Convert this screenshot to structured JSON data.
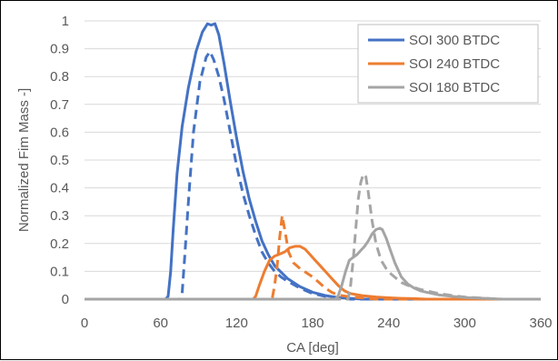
{
  "chart_data": {
    "type": "line",
    "title": "",
    "xlabel": "CA [deg]",
    "ylabel": "Normalized Fim Mass -]",
    "xlim": [
      0,
      360
    ],
    "ylim": [
      0,
      1
    ],
    "xticks": [
      0,
      60,
      120,
      180,
      240,
      300,
      360
    ],
    "yticks": [
      0,
      0.1,
      0.2,
      0.3,
      0.4,
      0.5,
      0.6,
      0.7,
      0.8,
      0.9,
      1
    ],
    "grid": "horizontal",
    "legend_position": "top-right",
    "series": [
      {
        "name": "SOI 300 BTDC",
        "color": "#4472C4",
        "style": "solid",
        "points": [
          [
            0,
            0
          ],
          [
            64,
            0
          ],
          [
            66,
            0.01
          ],
          [
            68,
            0.1
          ],
          [
            70,
            0.25
          ],
          [
            73,
            0.45
          ],
          [
            77,
            0.62
          ],
          [
            82,
            0.76
          ],
          [
            88,
            0.89
          ],
          [
            93,
            0.96
          ],
          [
            97,
            0.99
          ],
          [
            100,
            0.985
          ],
          [
            103,
            0.99
          ],
          [
            106,
            0.95
          ],
          [
            110,
            0.85
          ],
          [
            115,
            0.71
          ],
          [
            120,
            0.58
          ],
          [
            125,
            0.46
          ],
          [
            130,
            0.36
          ],
          [
            135,
            0.28
          ],
          [
            140,
            0.21
          ],
          [
            145,
            0.16
          ],
          [
            150,
            0.12
          ],
          [
            160,
            0.075
          ],
          [
            170,
            0.045
          ],
          [
            180,
            0.025
          ],
          [
            190,
            0.013
          ],
          [
            200,
            0.006
          ],
          [
            210,
            0.003
          ],
          [
            220,
            0
          ],
          [
            360,
            0
          ]
        ]
      },
      {
        "name": "SOI 300 BTDC",
        "color": "#4472C4",
        "style": "dashed",
        "points": [
          [
            0,
            0
          ],
          [
            75,
            0
          ],
          [
            77,
            0.02
          ],
          [
            79,
            0.15
          ],
          [
            82,
            0.35
          ],
          [
            86,
            0.6
          ],
          [
            91,
            0.78
          ],
          [
            96,
            0.87
          ],
          [
            99,
            0.89
          ],
          [
            102,
            0.86
          ],
          [
            106,
            0.8
          ],
          [
            110,
            0.72
          ],
          [
            115,
            0.6
          ],
          [
            120,
            0.48
          ],
          [
            125,
            0.38
          ],
          [
            130,
            0.3
          ],
          [
            135,
            0.23
          ],
          [
            140,
            0.17
          ],
          [
            145,
            0.13
          ],
          [
            150,
            0.1
          ],
          [
            155,
            0.08
          ],
          [
            160,
            0.065
          ],
          [
            170,
            0.04
          ],
          [
            180,
            0.02
          ],
          [
            190,
            0.01
          ],
          [
            200,
            0.004
          ],
          [
            210,
            0
          ],
          [
            360,
            0
          ]
        ]
      },
      {
        "name": "SOI 240 BTDC",
        "color": "#ED7D31",
        "style": "solid",
        "points": [
          [
            0,
            0
          ],
          [
            133,
            0
          ],
          [
            135,
            0.01
          ],
          [
            138,
            0.05
          ],
          [
            142,
            0.1
          ],
          [
            146,
            0.14
          ],
          [
            150,
            0.155
          ],
          [
            153,
            0.16
          ],
          [
            158,
            0.17
          ],
          [
            162,
            0.185
          ],
          [
            166,
            0.19
          ],
          [
            170,
            0.19
          ],
          [
            174,
            0.18
          ],
          [
            178,
            0.16
          ],
          [
            182,
            0.14
          ],
          [
            186,
            0.12
          ],
          [
            190,
            0.1
          ],
          [
            195,
            0.075
          ],
          [
            200,
            0.05
          ],
          [
            205,
            0.03
          ],
          [
            210,
            0.02
          ],
          [
            220,
            0.012
          ],
          [
            230,
            0.008
          ],
          [
            240,
            0.005
          ],
          [
            250,
            0.003
          ],
          [
            260,
            0.002
          ],
          [
            270,
            0
          ],
          [
            360,
            0
          ]
        ]
      },
      {
        "name": "SOI 240 BTDC",
        "color": "#ED7D31",
        "style": "dashed",
        "points": [
          [
            0,
            0
          ],
          [
            148,
            0
          ],
          [
            150,
            0.05
          ],
          [
            152,
            0.12
          ],
          [
            154,
            0.22
          ],
          [
            156,
            0.3
          ],
          [
            158,
            0.25
          ],
          [
            161,
            0.17
          ],
          [
            165,
            0.13
          ],
          [
            170,
            0.11
          ],
          [
            175,
            0.095
          ],
          [
            180,
            0.08
          ],
          [
            185,
            0.06
          ],
          [
            190,
            0.04
          ],
          [
            195,
            0.025
          ],
          [
            200,
            0.015
          ],
          [
            210,
            0.008
          ],
          [
            220,
            0.004
          ],
          [
            230,
            0
          ],
          [
            360,
            0
          ]
        ]
      },
      {
        "name": "SOI 180 BTDC",
        "color": "#A5A5A5",
        "style": "solid",
        "points": [
          [
            0,
            0
          ],
          [
            198,
            0
          ],
          [
            200,
            0.01
          ],
          [
            203,
            0.05
          ],
          [
            206,
            0.1
          ],
          [
            209,
            0.14
          ],
          [
            212,
            0.15
          ],
          [
            215,
            0.16
          ],
          [
            218,
            0.175
          ],
          [
            221,
            0.19
          ],
          [
            224,
            0.21
          ],
          [
            227,
            0.235
          ],
          [
            230,
            0.25
          ],
          [
            233,
            0.255
          ],
          [
            235,
            0.25
          ],
          [
            238,
            0.22
          ],
          [
            241,
            0.18
          ],
          [
            245,
            0.13
          ],
          [
            250,
            0.08
          ],
          [
            255,
            0.055
          ],
          [
            260,
            0.04
          ],
          [
            265,
            0.03
          ],
          [
            270,
            0.025
          ],
          [
            275,
            0.02
          ],
          [
            280,
            0.015
          ],
          [
            290,
            0.01
          ],
          [
            300,
            0.006
          ],
          [
            310,
            0.004
          ],
          [
            320,
            0.002
          ],
          [
            330,
            0
          ],
          [
            360,
            0
          ]
        ]
      },
      {
        "name": "SOI 180 BTDC",
        "color": "#A5A5A5",
        "style": "dashed",
        "points": [
          [
            0,
            0
          ],
          [
            208,
            0
          ],
          [
            210,
            0.05
          ],
          [
            212,
            0.14
          ],
          [
            214,
            0.25
          ],
          [
            216,
            0.36
          ],
          [
            218,
            0.42
          ],
          [
            220,
            0.45
          ],
          [
            222,
            0.44
          ],
          [
            224,
            0.38
          ],
          [
            227,
            0.28
          ],
          [
            230,
            0.2
          ],
          [
            234,
            0.14
          ],
          [
            238,
            0.11
          ],
          [
            242,
            0.09
          ],
          [
            246,
            0.075
          ],
          [
            250,
            0.06
          ],
          [
            255,
            0.05
          ],
          [
            260,
            0.042
          ],
          [
            265,
            0.035
          ],
          [
            270,
            0.03
          ],
          [
            275,
            0.025
          ],
          [
            280,
            0.02
          ],
          [
            290,
            0.013
          ],
          [
            300,
            0.008
          ],
          [
            310,
            0.005
          ],
          [
            320,
            0.002
          ],
          [
            330,
            0
          ],
          [
            360,
            0
          ]
        ]
      }
    ],
    "legend": [
      {
        "label": "SOI 300 BTDC",
        "color": "#4472C4"
      },
      {
        "label": "SOI 240 BTDC",
        "color": "#ED7D31"
      },
      {
        "label": "SOI 180 BTDC",
        "color": "#A5A5A5"
      }
    ]
  }
}
